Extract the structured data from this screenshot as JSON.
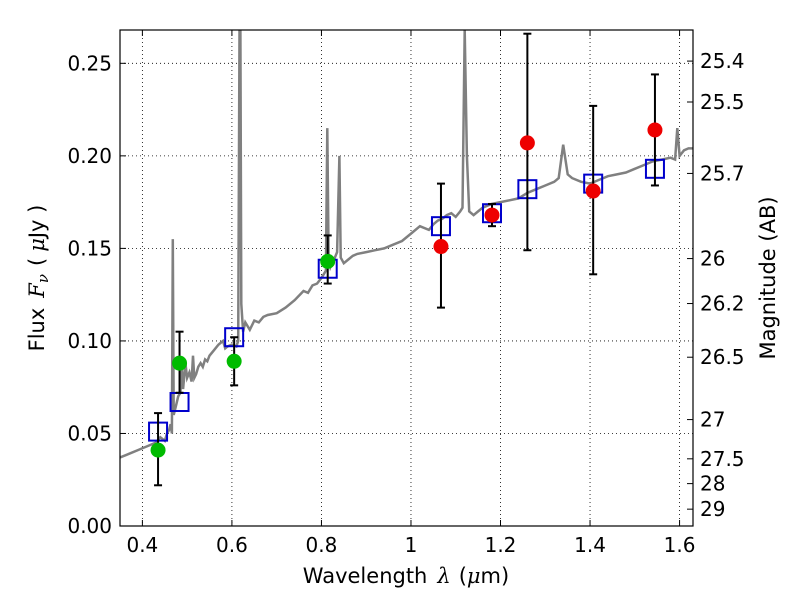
{
  "chart_data": {
    "type": "scatter",
    "xlabel_prefix": "Wavelength",
    "xlabel_symbol": "λ",
    "xlabel_unit_open": "(",
    "xlabel_unit_mu": "μ",
    "xlabel_unit_rest": "m)",
    "ylabel_prefix": "Flux",
    "ylabel_symbol": "F",
    "ylabel_sub": "ν",
    "ylabel_unit_open": "(",
    "ylabel_unit_mu": "μ",
    "ylabel_unit_rest": "Jy )",
    "y2label": "Magnitude (AB)",
    "xlim": [
      0.35,
      1.63
    ],
    "ylim": [
      0.0,
      0.268
    ],
    "x_ticks": [
      0.4,
      0.6,
      0.8,
      1.0,
      1.2,
      1.4,
      1.6
    ],
    "x_tick_labels": [
      "0.4",
      "0.6",
      "0.8",
      "1",
      "1.2",
      "1.4",
      "1.6"
    ],
    "y_ticks": [
      0.0,
      0.05,
      0.1,
      0.15,
      0.2,
      0.25
    ],
    "y_tick_labels": [
      "0.00",
      "0.05",
      "0.10",
      "0.15",
      "0.20",
      "0.25"
    ],
    "y2_ticks": [
      {
        "label": "25.4",
        "flux": 0.2512
      },
      {
        "label": "25.5",
        "flux": 0.2291
      },
      {
        "label": "25.7",
        "flux": 0.1905
      },
      {
        "label": "26",
        "flux": 0.1445
      },
      {
        "label": "26.2",
        "flux": 0.1202
      },
      {
        "label": "26.5",
        "flux": 0.0912
      },
      {
        "label": "27",
        "flux": 0.0575
      },
      {
        "label": "27.5",
        "flux": 0.0363
      },
      {
        "label": "28",
        "flux": 0.0229
      },
      {
        "label": "29",
        "flux": 0.0091
      }
    ],
    "grid": true,
    "colors": {
      "spectrum": "#808080",
      "model": "#0000cc",
      "green_points": "#00bb00",
      "red_points": "#ee0000",
      "errorbars": "#000000"
    },
    "spectrum": [
      [
        0.35,
        0.037
      ],
      [
        0.37,
        0.039
      ],
      [
        0.39,
        0.041
      ],
      [
        0.41,
        0.043
      ],
      [
        0.43,
        0.045
      ],
      [
        0.44,
        0.048
      ],
      [
        0.45,
        0.046
      ],
      [
        0.455,
        0.05
      ],
      [
        0.46,
        0.052
      ],
      [
        0.463,
        0.055
      ],
      [
        0.466,
        0.05
      ],
      [
        0.468,
        0.155
      ],
      [
        0.47,
        0.06
      ],
      [
        0.475,
        0.065
      ],
      [
        0.48,
        0.07
      ],
      [
        0.485,
        0.072
      ],
      [
        0.488,
        0.085
      ],
      [
        0.491,
        0.074
      ],
      [
        0.496,
        0.088
      ],
      [
        0.5,
        0.08
      ],
      [
        0.505,
        0.083
      ],
      [
        0.51,
        0.078
      ],
      [
        0.513,
        0.092
      ],
      [
        0.516,
        0.08
      ],
      [
        0.52,
        0.082
      ],
      [
        0.525,
        0.086
      ],
      [
        0.53,
        0.088
      ],
      [
        0.535,
        0.086
      ],
      [
        0.54,
        0.09
      ],
      [
        0.545,
        0.089
      ],
      [
        0.55,
        0.092
      ],
      [
        0.56,
        0.095
      ],
      [
        0.57,
        0.098
      ],
      [
        0.58,
        0.1
      ],
      [
        0.585,
        0.096
      ],
      [
        0.59,
        0.097
      ],
      [
        0.6,
        0.098
      ],
      [
        0.61,
        0.097
      ],
      [
        0.614,
        0.1
      ],
      [
        0.617,
        0.268
      ],
      [
        0.619,
        0.268
      ],
      [
        0.621,
        0.12
      ],
      [
        0.625,
        0.105
      ],
      [
        0.63,
        0.11
      ],
      [
        0.64,
        0.106
      ],
      [
        0.65,
        0.111
      ],
      [
        0.66,
        0.11
      ],
      [
        0.67,
        0.113
      ],
      [
        0.68,
        0.114
      ],
      [
        0.7,
        0.115
      ],
      [
        0.72,
        0.118
      ],
      [
        0.74,
        0.122
      ],
      [
        0.76,
        0.127
      ],
      [
        0.77,
        0.126
      ],
      [
        0.78,
        0.13
      ],
      [
        0.79,
        0.131
      ],
      [
        0.8,
        0.134
      ],
      [
        0.805,
        0.136
      ],
      [
        0.81,
        0.138
      ],
      [
        0.813,
        0.215
      ],
      [
        0.816,
        0.145
      ],
      [
        0.82,
        0.14
      ],
      [
        0.825,
        0.143
      ],
      [
        0.83,
        0.145
      ],
      [
        0.835,
        0.148
      ],
      [
        0.84,
        0.2
      ],
      [
        0.843,
        0.145
      ],
      [
        0.85,
        0.142
      ],
      [
        0.86,
        0.144
      ],
      [
        0.87,
        0.146
      ],
      [
        0.88,
        0.147
      ],
      [
        0.9,
        0.148
      ],
      [
        0.92,
        0.149
      ],
      [
        0.94,
        0.15
      ],
      [
        0.96,
        0.152
      ],
      [
        0.98,
        0.154
      ],
      [
        1.0,
        0.158
      ],
      [
        1.02,
        0.162
      ],
      [
        1.04,
        0.16
      ],
      [
        1.05,
        0.163
      ],
      [
        1.06,
        0.165
      ],
      [
        1.07,
        0.166
      ],
      [
        1.08,
        0.168
      ],
      [
        1.09,
        0.169
      ],
      [
        1.1,
        0.167
      ],
      [
        1.11,
        0.17
      ],
      [
        1.115,
        0.172
      ],
      [
        1.12,
        0.268
      ],
      [
        1.125,
        0.2
      ],
      [
        1.13,
        0.17
      ],
      [
        1.14,
        0.168
      ],
      [
        1.15,
        0.17
      ],
      [
        1.16,
        0.172
      ],
      [
        1.18,
        0.174
      ],
      [
        1.2,
        0.175
      ],
      [
        1.22,
        0.176
      ],
      [
        1.24,
        0.177
      ],
      [
        1.26,
        0.18
      ],
      [
        1.28,
        0.182
      ],
      [
        1.3,
        0.184
      ],
      [
        1.32,
        0.186
      ],
      [
        1.33,
        0.188
      ],
      [
        1.34,
        0.206
      ],
      [
        1.35,
        0.19
      ],
      [
        1.36,
        0.188
      ],
      [
        1.38,
        0.186
      ],
      [
        1.4,
        0.185
      ],
      [
        1.42,
        0.187
      ],
      [
        1.44,
        0.189
      ],
      [
        1.46,
        0.19
      ],
      [
        1.48,
        0.191
      ],
      [
        1.5,
        0.193
      ],
      [
        1.52,
        0.195
      ],
      [
        1.54,
        0.197
      ],
      [
        1.56,
        0.198
      ],
      [
        1.58,
        0.199
      ],
      [
        1.59,
        0.198
      ],
      [
        1.595,
        0.215
      ],
      [
        1.6,
        0.2
      ],
      [
        1.61,
        0.203
      ],
      [
        1.62,
        0.204
      ],
      [
        1.63,
        0.204
      ]
    ],
    "model_points": [
      {
        "x": 0.435,
        "y": 0.051
      },
      {
        "x": 0.483,
        "y": 0.067
      },
      {
        "x": 0.605,
        "y": 0.102
      },
      {
        "x": 0.814,
        "y": 0.139
      },
      {
        "x": 1.067,
        "y": 0.162
      },
      {
        "x": 1.181,
        "y": 0.169
      },
      {
        "x": 1.26,
        "y": 0.182
      },
      {
        "x": 1.407,
        "y": 0.185
      },
      {
        "x": 1.545,
        "y": 0.193
      }
    ],
    "green_points": [
      {
        "x": 0.435,
        "y": 0.041,
        "err_lo": 0.022,
        "err_hi": 0.061
      },
      {
        "x": 0.483,
        "y": 0.088,
        "err_lo": 0.072,
        "err_hi": 0.105
      },
      {
        "x": 0.605,
        "y": 0.089,
        "err_lo": 0.076,
        "err_hi": 0.102
      },
      {
        "x": 0.814,
        "y": 0.143,
        "err_lo": 0.131,
        "err_hi": 0.157
      }
    ],
    "red_points": [
      {
        "x": 1.067,
        "y": 0.151,
        "err_lo": 0.118,
        "err_hi": 0.185
      },
      {
        "x": 1.181,
        "y": 0.168,
        "err_lo": 0.162,
        "err_hi": 0.174
      },
      {
        "x": 1.26,
        "y": 0.207,
        "err_lo": 0.149,
        "err_hi": 0.266
      },
      {
        "x": 1.407,
        "y": 0.181,
        "err_lo": 0.136,
        "err_hi": 0.227
      },
      {
        "x": 1.545,
        "y": 0.214,
        "err_lo": 0.184,
        "err_hi": 0.244
      }
    ]
  }
}
